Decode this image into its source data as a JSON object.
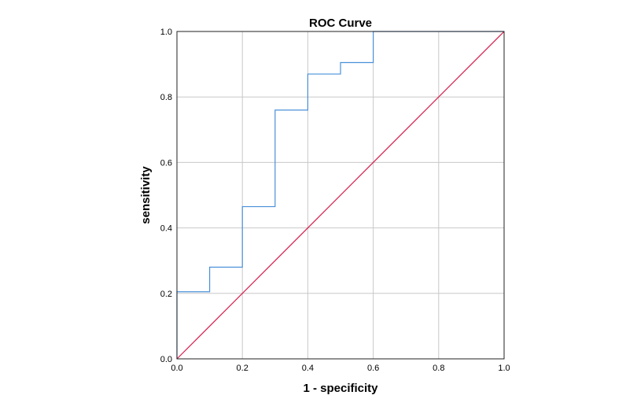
{
  "chart_data": {
    "type": "line",
    "title": "ROC Curve",
    "xlabel": "1 - specificity",
    "ylabel": "sensitivity",
    "xlim": [
      0.0,
      1.0
    ],
    "ylim": [
      0.0,
      1.0
    ],
    "xticks": [
      "0.0",
      "0.2",
      "0.4",
      "0.6",
      "0.8",
      "1.0"
    ],
    "yticks": [
      "0.0",
      "0.2",
      "0.4",
      "0.6",
      "0.8",
      "1.0"
    ],
    "grid": true,
    "series": [
      {
        "color": "#4a90d9",
        "x": [
          0.0,
          0.0,
          0.1,
          0.1,
          0.2,
          0.2,
          0.3,
          0.3,
          0.4,
          0.4,
          0.5,
          0.5,
          0.6,
          0.6,
          1.0
        ],
        "y": [
          0.0,
          0.205,
          0.205,
          0.28,
          0.28,
          0.465,
          0.465,
          0.76,
          0.76,
          0.87,
          0.87,
          0.905,
          0.905,
          1.0,
          1.0
        ]
      },
      {
        "color": "#d81b4a",
        "x": [
          0.0,
          1.0
        ],
        "y": [
          0.0,
          1.0
        ]
      }
    ]
  }
}
